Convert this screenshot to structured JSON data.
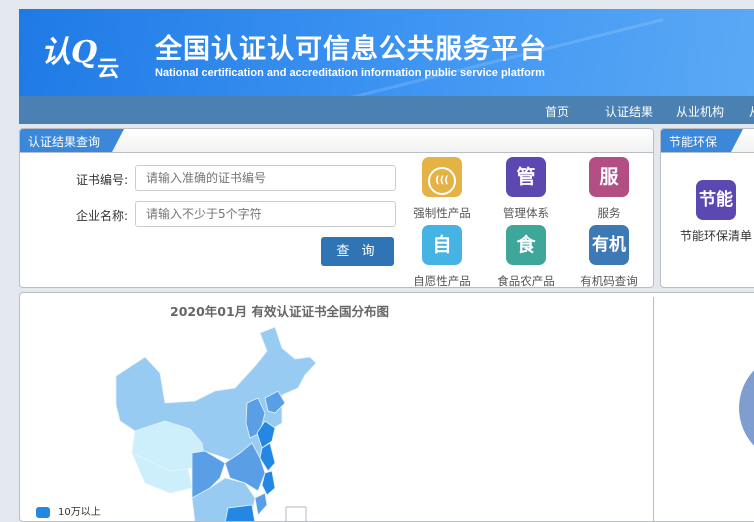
{
  "header": {
    "logo": "认云",
    "title": "全国认证认可信息公共服务平台",
    "subtitle": "National certification and accreditation information public service platform"
  },
  "nav": {
    "items": [
      "首页",
      "认证结果",
      "从业机构",
      "从"
    ]
  },
  "query": {
    "tab": "认证结果查询",
    "cert_label": "证书编号:",
    "cert_placeholder": "请输入准确的证书编号",
    "company_label": "企业名称:",
    "company_placeholder": "请输入不少于5个字符",
    "search_button": "查 询",
    "categories": [
      {
        "icon": "CCC",
        "label": "强制性产品",
        "color": "#e5b246"
      },
      {
        "icon": "管",
        "label": "管理体系",
        "color": "#5b48b0"
      },
      {
        "icon": "服",
        "label": "服务",
        "color": "#b24e83"
      },
      {
        "icon": "自",
        "label": "自愿性产品",
        "color": "#45b4e5"
      },
      {
        "icon": "食",
        "label": "食品农产品",
        "color": "#3fa79a"
      },
      {
        "icon": "有机",
        "label": "有机码查询",
        "color": "#3d79b4"
      }
    ]
  },
  "green": {
    "tab": "节能环保",
    "icon": "节能",
    "icon_color": "#5b48b0",
    "label": "节能环保清单"
  },
  "map": {
    "title": "2020年01月  有效认证证书全国分布图",
    "legend": [
      {
        "label": "10万以上",
        "color": "#2587e4"
      }
    ],
    "colors": {
      "high": "#2587e4",
      "mid": "#5a9fe6",
      "low": "#98cbf2",
      "lowest": "#cdeefb"
    }
  },
  "pie": {
    "color": "#7f9ecf"
  }
}
